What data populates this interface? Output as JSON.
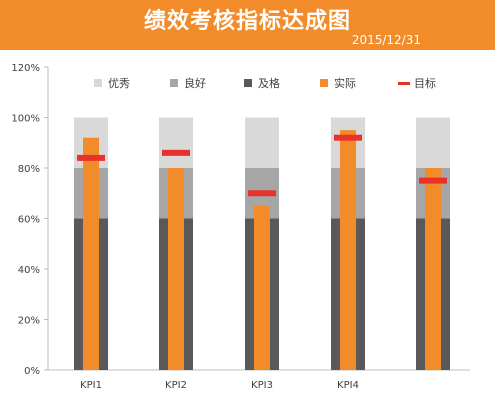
{
  "header": {
    "title": "绩效考核指标达成图",
    "date": "2015/12/31"
  },
  "colors": {
    "header_bg": "#f28c2b",
    "excellent": "#d9d9d9",
    "good": "#a6a6a6",
    "pass": "#595959",
    "actual": "#f28c2b",
    "target": "#e8312b"
  },
  "chart_data": {
    "type": "bar",
    "title": "绩效考核指标达成图",
    "subtitle": "2015/12/31",
    "categories": [
      "KPI1",
      "KPI2",
      "KPI3",
      "KPI4",
      ""
    ],
    "ylim": [
      0,
      1.2
    ],
    "yticks": [
      0,
      0.2,
      0.4,
      0.6,
      0.8,
      1.0,
      1.2
    ],
    "ytick_labels": [
      "0%",
      "20%",
      "40%",
      "60%",
      "80%",
      "100%",
      "120%"
    ],
    "legend_position": "top",
    "series": [
      {
        "name": "优秀",
        "kind": "band-stacked",
        "values": [
          0.2,
          0.2,
          0.2,
          0.2,
          0.2
        ]
      },
      {
        "name": "良好",
        "kind": "band-stacked",
        "values": [
          0.2,
          0.2,
          0.2,
          0.2,
          0.2
        ]
      },
      {
        "name": "及格",
        "kind": "band-stacked",
        "values": [
          0.6,
          0.6,
          0.6,
          0.6,
          0.6
        ]
      },
      {
        "name": "实际",
        "kind": "bar",
        "values": [
          0.92,
          0.8,
          0.65,
          0.95,
          0.8
        ]
      },
      {
        "name": "目标",
        "kind": "marker",
        "values": [
          0.84,
          0.86,
          0.7,
          0.92,
          0.75
        ]
      }
    ]
  }
}
